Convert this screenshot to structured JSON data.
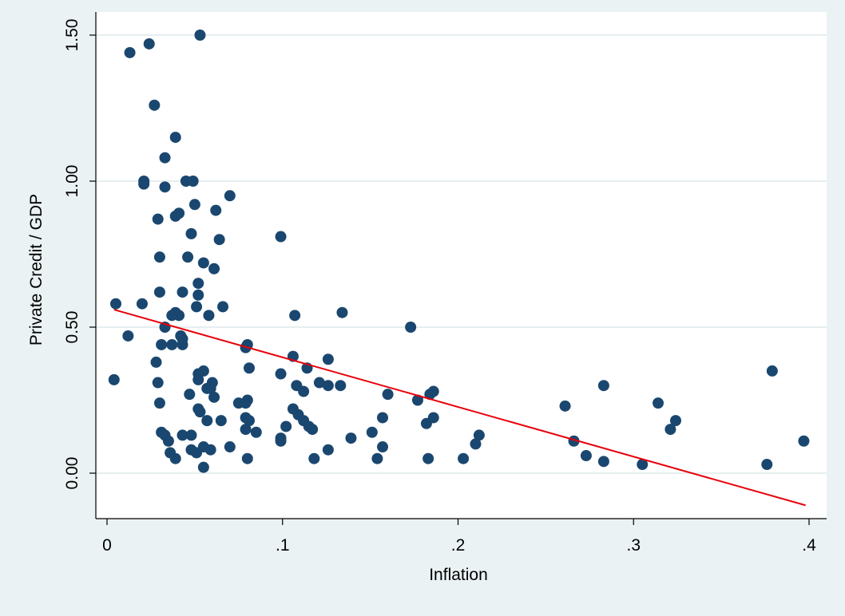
{
  "chart_data": {
    "type": "scatter",
    "title": "",
    "xlabel": "Inflation",
    "ylabel": "Private Credit / GDP",
    "xlim": [
      0,
      0.4
    ],
    "ylim": [
      0,
      1.5
    ],
    "x_ticks": [
      0,
      0.1,
      0.2,
      0.3,
      0.4
    ],
    "x_tick_labels": [
      "0",
      ".1",
      ".2",
      ".3",
      ".4"
    ],
    "y_ticks": [
      0,
      0.5,
      1.0,
      1.5
    ],
    "y_tick_labels": [
      "0.00",
      "0.50",
      "1.00",
      "1.50"
    ],
    "grid": "horizontal",
    "colors": {
      "background": "#eaf2f3",
      "plot_area": "#ffffff",
      "gridline": "#e6eef0",
      "points": "#1a476f",
      "fit_line": "#e8000b"
    },
    "series": [
      {
        "type": "scatter",
        "points": [
          [
            0.013,
            1.44
          ],
          [
            0.024,
            1.47
          ],
          [
            0.053,
            1.5
          ],
          [
            0.027,
            1.26
          ],
          [
            0.039,
            1.15
          ],
          [
            0.033,
            1.08
          ],
          [
            0.021,
            1.0
          ],
          [
            0.021,
            0.99
          ],
          [
            0.033,
            0.98
          ],
          [
            0.045,
            1.0
          ],
          [
            0.049,
            1.0
          ],
          [
            0.07,
            0.95
          ],
          [
            0.05,
            0.92
          ],
          [
            0.062,
            0.9
          ],
          [
            0.041,
            0.89
          ],
          [
            0.039,
            0.88
          ],
          [
            0.029,
            0.87
          ],
          [
            0.048,
            0.82
          ],
          [
            0.064,
            0.8
          ],
          [
            0.099,
            0.81
          ],
          [
            0.03,
            0.74
          ],
          [
            0.046,
            0.74
          ],
          [
            0.055,
            0.72
          ],
          [
            0.061,
            0.7
          ],
          [
            0.052,
            0.65
          ],
          [
            0.03,
            0.62
          ],
          [
            0.043,
            0.62
          ],
          [
            0.052,
            0.61
          ],
          [
            0.005,
            0.58
          ],
          [
            0.02,
            0.58
          ],
          [
            0.051,
            0.57
          ],
          [
            0.066,
            0.57
          ],
          [
            0.134,
            0.55
          ],
          [
            0.039,
            0.55
          ],
          [
            0.041,
            0.54
          ],
          [
            0.037,
            0.54
          ],
          [
            0.058,
            0.54
          ],
          [
            0.107,
            0.54
          ],
          [
            0.012,
            0.47
          ],
          [
            0.033,
            0.5
          ],
          [
            0.173,
            0.5
          ],
          [
            0.042,
            0.47
          ],
          [
            0.043,
            0.46
          ],
          [
            0.043,
            0.44
          ],
          [
            0.031,
            0.44
          ],
          [
            0.037,
            0.44
          ],
          [
            0.08,
            0.44
          ],
          [
            0.079,
            0.43
          ],
          [
            0.106,
            0.4
          ],
          [
            0.126,
            0.39
          ],
          [
            0.028,
            0.38
          ],
          [
            0.081,
            0.36
          ],
          [
            0.114,
            0.36
          ],
          [
            0.055,
            0.35
          ],
          [
            0.099,
            0.34
          ],
          [
            0.052,
            0.34
          ],
          [
            0.06,
            0.31
          ],
          [
            0.052,
            0.32
          ],
          [
            0.004,
            0.32
          ],
          [
            0.029,
            0.31
          ],
          [
            0.108,
            0.3
          ],
          [
            0.121,
            0.31
          ],
          [
            0.126,
            0.3
          ],
          [
            0.133,
            0.3
          ],
          [
            0.059,
            0.29
          ],
          [
            0.057,
            0.29
          ],
          [
            0.112,
            0.28
          ],
          [
            0.186,
            0.28
          ],
          [
            0.16,
            0.27
          ],
          [
            0.184,
            0.27
          ],
          [
            0.047,
            0.27
          ],
          [
            0.061,
            0.26
          ],
          [
            0.08,
            0.25
          ],
          [
            0.079,
            0.24
          ],
          [
            0.075,
            0.24
          ],
          [
            0.177,
            0.25
          ],
          [
            0.03,
            0.24
          ],
          [
            0.052,
            0.22
          ],
          [
            0.106,
            0.22
          ],
          [
            0.053,
            0.21
          ],
          [
            0.109,
            0.2
          ],
          [
            0.079,
            0.19
          ],
          [
            0.157,
            0.19
          ],
          [
            0.186,
            0.19
          ],
          [
            0.112,
            0.18
          ],
          [
            0.081,
            0.18
          ],
          [
            0.057,
            0.18
          ],
          [
            0.065,
            0.18
          ],
          [
            0.182,
            0.17
          ],
          [
            0.102,
            0.16
          ],
          [
            0.115,
            0.16
          ],
          [
            0.079,
            0.15
          ],
          [
            0.117,
            0.15
          ],
          [
            0.085,
            0.14
          ],
          [
            0.031,
            0.14
          ],
          [
            0.033,
            0.13
          ],
          [
            0.043,
            0.13
          ],
          [
            0.048,
            0.13
          ],
          [
            0.151,
            0.14
          ],
          [
            0.212,
            0.13
          ],
          [
            0.099,
            0.12
          ],
          [
            0.035,
            0.11
          ],
          [
            0.139,
            0.12
          ],
          [
            0.099,
            0.11
          ],
          [
            0.21,
            0.1
          ],
          [
            0.266,
            0.11
          ],
          [
            0.07,
            0.09
          ],
          [
            0.055,
            0.09
          ],
          [
            0.048,
            0.08
          ],
          [
            0.059,
            0.08
          ],
          [
            0.126,
            0.08
          ],
          [
            0.157,
            0.09
          ],
          [
            0.036,
            0.07
          ],
          [
            0.051,
            0.07
          ],
          [
            0.039,
            0.05
          ],
          [
            0.08,
            0.05
          ],
          [
            0.118,
            0.05
          ],
          [
            0.154,
            0.05
          ],
          [
            0.183,
            0.05
          ],
          [
            0.203,
            0.05
          ],
          [
            0.273,
            0.06
          ],
          [
            0.283,
            0.04
          ],
          [
            0.305,
            0.03
          ],
          [
            0.055,
            0.02
          ],
          [
            0.261,
            0.23
          ],
          [
            0.283,
            0.3
          ],
          [
            0.314,
            0.24
          ],
          [
            0.324,
            0.18
          ],
          [
            0.321,
            0.15
          ],
          [
            0.379,
            0.35
          ],
          [
            0.376,
            0.03
          ],
          [
            0.397,
            0.11
          ]
        ]
      },
      {
        "type": "line",
        "points": [
          [
            0.004,
            0.56
          ],
          [
            0.398,
            -0.11
          ]
        ]
      }
    ]
  }
}
